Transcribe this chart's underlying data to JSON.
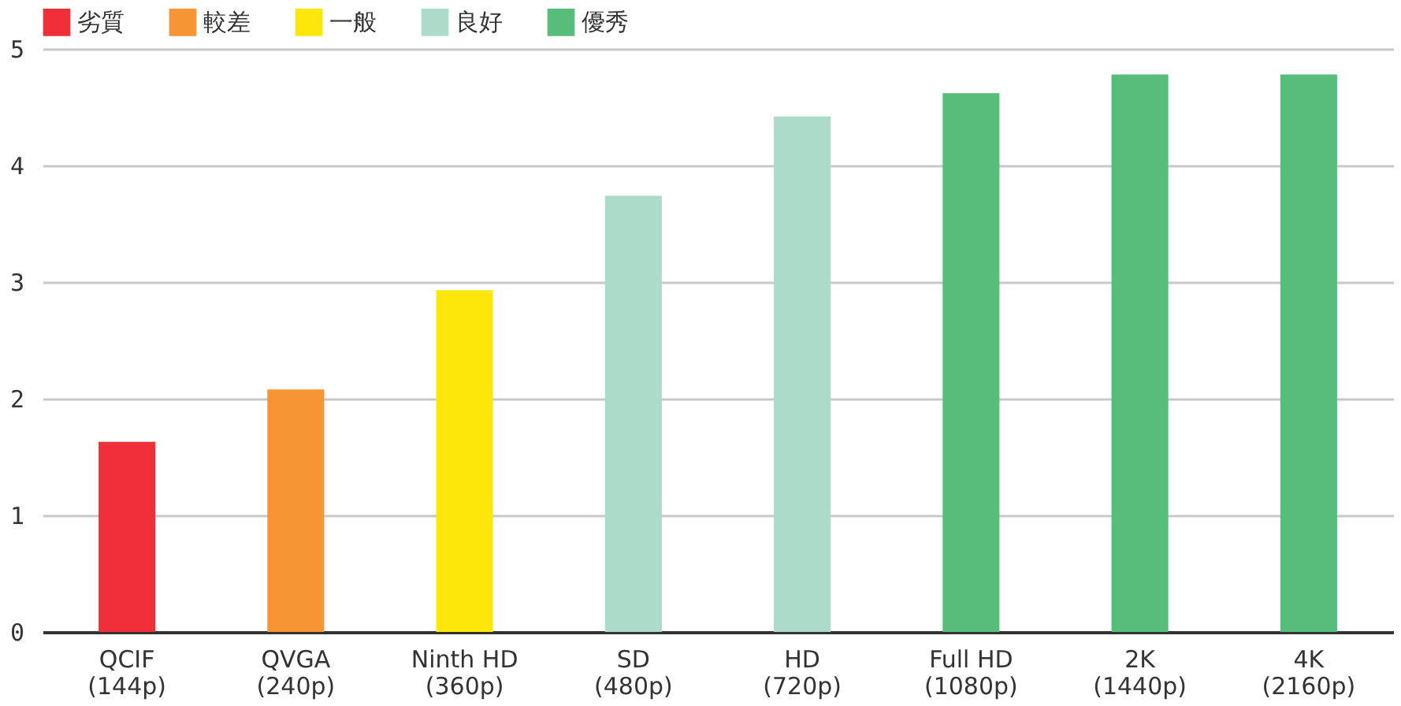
{
  "chart_data": {
    "type": "bar",
    "categories": [
      "QCIF\n(144p)",
      "QVGA\n(240p)",
      "Ninth HD\n(360p)",
      "SD\n(480p)",
      "HD\n(720p)",
      "Full HD\n(1080p)",
      "2K\n(1440p)",
      "4K\n(2160p)"
    ],
    "series": [
      {
        "name": "劣質",
        "color": "#f02e38",
        "values": [
          1.63,
          null,
          null,
          null,
          null,
          null,
          null,
          null
        ]
      },
      {
        "name": "較差",
        "color": "#f79433",
        "values": [
          null,
          2.08,
          null,
          null,
          null,
          null,
          null,
          null
        ]
      },
      {
        "name": "一般",
        "color": "#fde70a",
        "values": [
          null,
          null,
          2.93,
          null,
          null,
          null,
          null,
          null
        ]
      },
      {
        "name": "良好",
        "color": "#acdbca",
        "values": [
          null,
          null,
          null,
          3.74,
          4.42,
          null,
          null,
          null
        ]
      },
      {
        "name": "優秀",
        "color": "#56bd7a",
        "values": [
          null,
          null,
          null,
          null,
          null,
          4.62,
          4.78,
          4.78
        ]
      }
    ],
    "ylim": [
      0,
      5
    ],
    "yticks": [
      0,
      1,
      2,
      3,
      4,
      5
    ],
    "grid": "y",
    "legend": "top left"
  }
}
